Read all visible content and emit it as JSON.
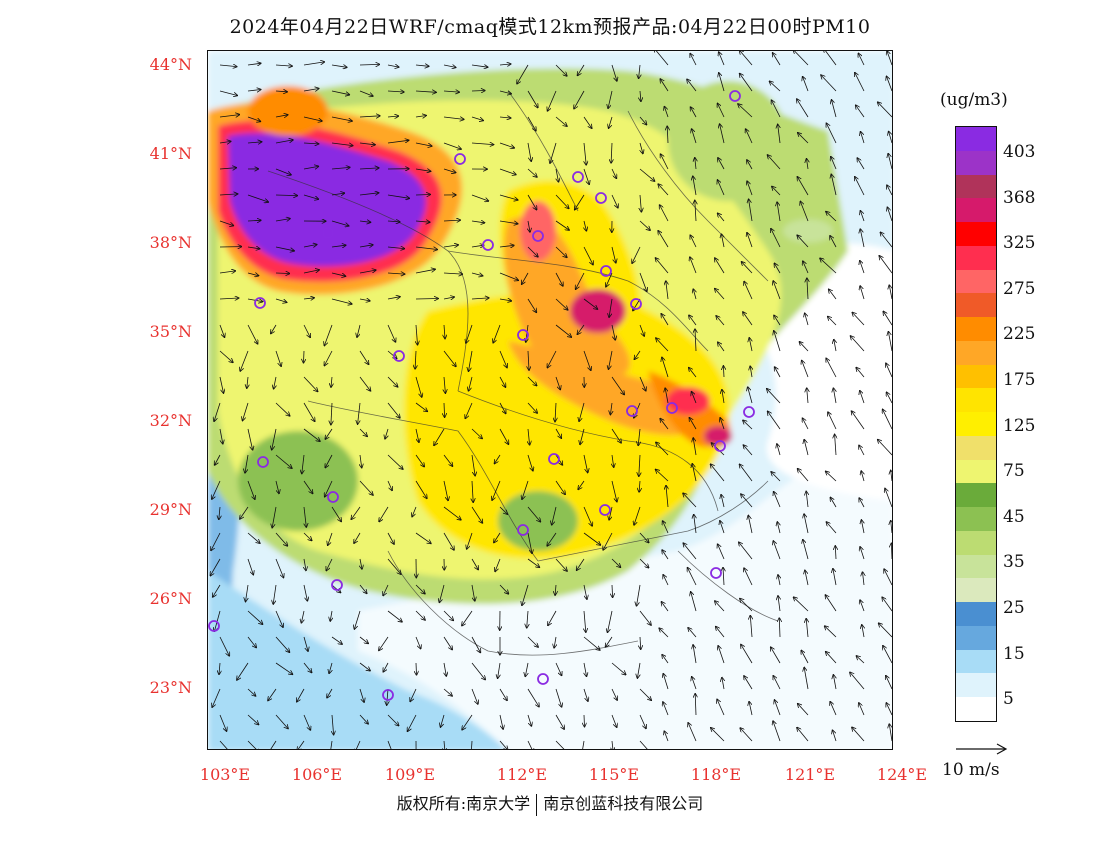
{
  "title": {
    "main": "2024年04月22日WRF/cmaq模式12km预报产品:04月22日00时",
    "pollutant": "PM10"
  },
  "map": {
    "lat_labels": [
      "44°N",
      "41°N",
      "38°N",
      "35°N",
      "32°N",
      "29°N",
      "26°N",
      "23°N"
    ],
    "lon_labels": [
      "103°E",
      "106°E",
      "109°E",
      "112°E",
      "115°E",
      "118°E",
      "121°E",
      "124°E"
    ],
    "colors": {
      "purple": "#8a2be2",
      "magenta": "#c21c5e",
      "red": "#ff1a1a",
      "orange": "#ff9a1c",
      "yellow": "#ffe600",
      "light_yellow": "#f2e98a",
      "green": "#8cc152",
      "light_green": "#c7e08f",
      "blue": "#4a8fd1",
      "light_blue": "#a8dcf6",
      "pale_blue": "#dff3fc",
      "axis_text": "#e8322f"
    },
    "city_marker_color": "#8a2be2"
  },
  "legend": {
    "unit": "(ug/m3)",
    "labels": [
      "403",
      "368",
      "325",
      "275",
      "225",
      "175",
      "125",
      "75",
      "45",
      "35",
      "25",
      "15",
      "5"
    ],
    "colors": [
      "#8a2be2",
      "#9c33c8",
      "#b0335a",
      "#d61a6b",
      "#ff0000",
      "#ff2e4f",
      "#ff6565",
      "#f05a28",
      "#ff8c00",
      "#ffa726",
      "#ffc000",
      "#ffe400",
      "#ffef00",
      "#f0e06a",
      "#eef570",
      "#6aab3a",
      "#8cc152",
      "#bcdc72",
      "#c8e39a",
      "#dbe9bd",
      "#4a8fd1",
      "#66a8de",
      "#a8dcf6",
      "#dff3fc",
      "#ffffff"
    ]
  },
  "wind": {
    "scale_label": "10 m/s"
  },
  "footer": {
    "rights": "版权所有:南京大学",
    "company": "南京创蓝科技有限公司"
  }
}
